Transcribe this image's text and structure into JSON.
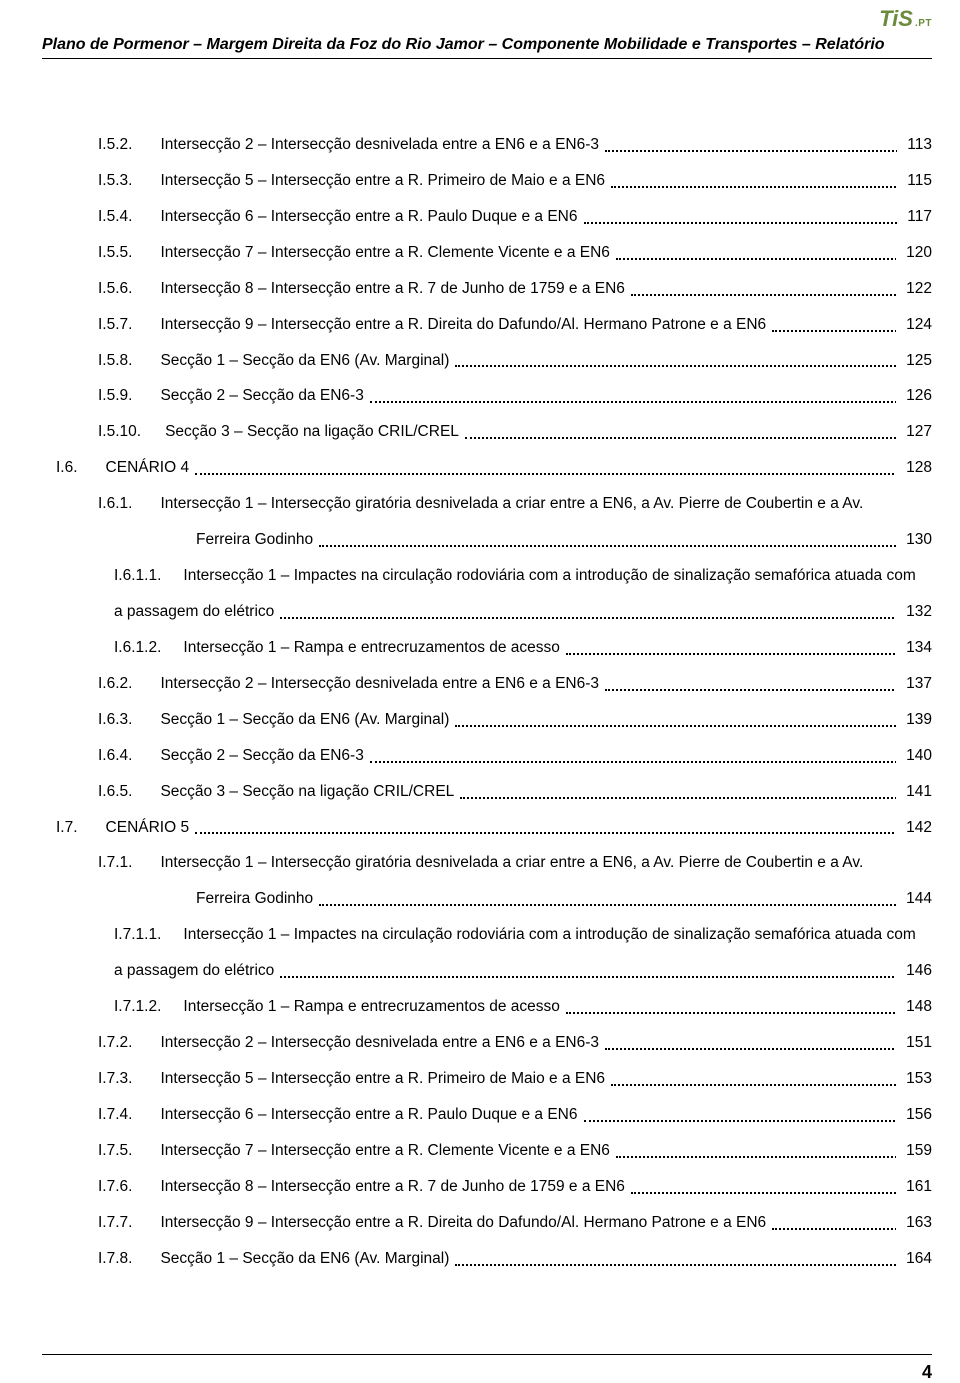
{
  "logo": {
    "main": "TiS",
    "suffix": ".PT"
  },
  "header": "Plano de Pormenor – Margem Direita da Foz do Rio Jamor – Componente Mobilidade e Transportes – Relatório",
  "footer_page": "4",
  "toc_entries": [
    {
      "indent": 1,
      "num": "I.5.2.",
      "text": "Intersecção 2 – Intersecção desnivelada entre a EN6 e a EN6-3",
      "page": "113"
    },
    {
      "indent": 1,
      "num": "I.5.3.",
      "text": "Intersecção 5 – Intersecção entre a R. Primeiro de Maio e a EN6",
      "page": "115"
    },
    {
      "indent": 1,
      "num": "I.5.4.",
      "text": "Intersecção 6 – Intersecção entre a R. Paulo Duque e a EN6",
      "page": "117"
    },
    {
      "indent": 1,
      "num": "I.5.5.",
      "text": "Intersecção 7 – Intersecção entre a R. Clemente Vicente e a EN6",
      "page": "120"
    },
    {
      "indent": 1,
      "num": "I.5.6.",
      "text": "Intersecção 8 – Intersecção entre a R. 7 de Junho de 1759 e a EN6",
      "page": "122"
    },
    {
      "indent": 1,
      "num": "I.5.7.",
      "text": "Intersecção 9 – Intersecção entre a R. Direita do Dafundo/Al. Hermano Patrone e a EN6",
      "page": "124"
    },
    {
      "indent": 1,
      "num": "I.5.8.",
      "text": "Secção 1 – Secção da EN6 (Av. Marginal)",
      "page": "125"
    },
    {
      "indent": 1,
      "num": "I.5.9.",
      "text": "Secção 2 – Secção da EN6-3",
      "page": "126"
    },
    {
      "indent": 1,
      "num": "I.5.10.",
      "text": "Secção 3 – Secção na ligação CRIL/CREL",
      "page": "127"
    },
    {
      "indent": 0,
      "num": "I.6.",
      "text": "CENÁRIO 4",
      "page": "128"
    },
    {
      "indent": 1,
      "num": "I.6.1.",
      "text": "Intersecção 1 – Intersecção giratória desnivelada a criar entre a EN6, a Av. Pierre de Coubertin e a Av.",
      "nobreakpage": true
    },
    {
      "cont": true,
      "text": "Ferreira Godinho",
      "page": "130"
    },
    {
      "indent": 1,
      "num": "I.6.1.1.",
      "text": "Intersecção 1 – Impactes na circulação rodoviária com a introdução de sinalização semafórica atuada com",
      "nobreakpage": true,
      "subpad": true
    },
    {
      "cont2": true,
      "text": "a passagem do elétrico",
      "page": "132"
    },
    {
      "indent": 1,
      "num": "I.6.1.2.",
      "text": "Intersecção 1 – Rampa e entrecruzamentos de acesso",
      "page": "134",
      "subpad": true
    },
    {
      "indent": 1,
      "num": "I.6.2.",
      "text": "Intersecção 2 – Intersecção desnivelada entre a EN6 e a EN6-3",
      "page": "137"
    },
    {
      "indent": 1,
      "num": "I.6.3.",
      "text": "Secção 1 – Secção da EN6 (Av. Marginal)",
      "page": "139"
    },
    {
      "indent": 1,
      "num": "I.6.4.",
      "text": "Secção 2 – Secção da EN6-3",
      "page": "140"
    },
    {
      "indent": 1,
      "num": "I.6.5.",
      "text": "Secção 3 – Secção na ligação CRIL/CREL",
      "page": "141"
    },
    {
      "indent": 0,
      "num": "I.7.",
      "text": "CENÁRIO 5",
      "page": "142"
    },
    {
      "indent": 1,
      "num": "I.7.1.",
      "text": "Intersecção 1 – Intersecção giratória desnivelada a criar entre a EN6, a Av. Pierre de Coubertin e a Av.",
      "nobreakpage": true
    },
    {
      "cont": true,
      "text": "Ferreira Godinho",
      "page": "144"
    },
    {
      "indent": 1,
      "num": "I.7.1.1.",
      "text": "Intersecção 1 – Impactes na circulação rodoviária com a introdução de sinalização semafórica atuada com",
      "nobreakpage": true,
      "subpad": true
    },
    {
      "cont2": true,
      "text": "a passagem do elétrico",
      "page": "146"
    },
    {
      "indent": 1,
      "num": "I.7.1.2.",
      "text": "Intersecção 1 – Rampa e entrecruzamentos de acesso",
      "page": "148",
      "subpad": true
    },
    {
      "indent": 1,
      "num": "I.7.2.",
      "text": "Intersecção 2 – Intersecção desnivelada entre a EN6 e a EN6-3",
      "page": "151"
    },
    {
      "indent": 1,
      "num": "I.7.3.",
      "text": "Intersecção 5 – Intersecção entre a R. Primeiro de Maio e a EN6",
      "page": "153"
    },
    {
      "indent": 1,
      "num": "I.7.4.",
      "text": "Intersecção 6 – Intersecção entre a R. Paulo Duque e a EN6",
      "page": "156"
    },
    {
      "indent": 1,
      "num": "I.7.5.",
      "text": "Intersecção 7 – Intersecção entre a R. Clemente Vicente e a EN6",
      "page": "159"
    },
    {
      "indent": 1,
      "num": "I.7.6.",
      "text": "Intersecção 8 – Intersecção entre a R. 7 de Junho de 1759 e a EN6",
      "page": "161"
    },
    {
      "indent": 1,
      "num": "I.7.7.",
      "text": "Intersecção 9 – Intersecção entre a R. Direita do Dafundo/Al. Hermano Patrone e a EN6",
      "page": "163"
    },
    {
      "indent": 1,
      "num": "I.7.8.",
      "text": "Secção 1 – Secção da EN6 (Av. Marginal)",
      "page": "164"
    }
  ]
}
